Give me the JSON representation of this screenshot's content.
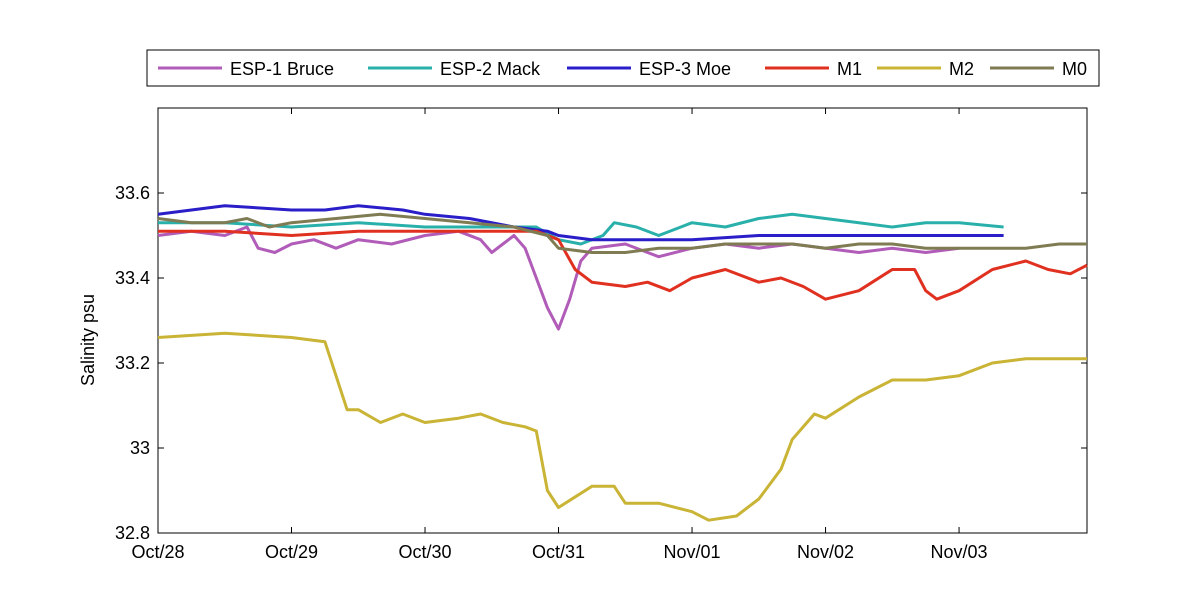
{
  "chart_data": {
    "type": "line",
    "title": "",
    "xlabel": "",
    "ylabel": "Salinity psu",
    "xlim": [
      "2009-10-28T00:00",
      "2009-11-03T23:00"
    ],
    "ylim": [
      32.8,
      33.8
    ],
    "grid": false,
    "legend": "top-horizontal",
    "x_ticks": [
      {
        "t": "2009-10-28T00:00",
        "label": "Oct/28"
      },
      {
        "t": "2009-10-29T00:00",
        "label": "Oct/29"
      },
      {
        "t": "2009-10-30T00:00",
        "label": "Oct/30"
      },
      {
        "t": "2009-10-31T00:00",
        "label": "Oct/31"
      },
      {
        "t": "2009-11-01T00:00",
        "label": "Nov/01"
      },
      {
        "t": "2009-11-02T00:00",
        "label": "Nov/02"
      },
      {
        "t": "2009-11-03T00:00",
        "label": "Nov/03"
      }
    ],
    "y_ticks": [
      {
        "v": 32.8,
        "label": "32.8"
      },
      {
        "v": 33.0,
        "label": "33"
      },
      {
        "v": 33.2,
        "label": "33.2"
      },
      {
        "v": 33.4,
        "label": "33.4"
      },
      {
        "v": 33.6,
        "label": "33.6"
      }
    ],
    "series": [
      {
        "name": "ESP-1 Bruce",
        "color": "#b05cb8",
        "points": [
          [
            "2009-10-28T00:00",
            33.5
          ],
          [
            "2009-10-28T06:00",
            33.51
          ],
          [
            "2009-10-28T12:00",
            33.5
          ],
          [
            "2009-10-28T16:00",
            33.52
          ],
          [
            "2009-10-28T18:00",
            33.47
          ],
          [
            "2009-10-28T21:00",
            33.46
          ],
          [
            "2009-10-29T00:00",
            33.48
          ],
          [
            "2009-10-29T04:00",
            33.49
          ],
          [
            "2009-10-29T08:00",
            33.47
          ],
          [
            "2009-10-29T12:00",
            33.49
          ],
          [
            "2009-10-29T18:00",
            33.48
          ],
          [
            "2009-10-30T00:00",
            33.5
          ],
          [
            "2009-10-30T06:00",
            33.51
          ],
          [
            "2009-10-30T10:00",
            33.49
          ],
          [
            "2009-10-30T12:00",
            33.46
          ],
          [
            "2009-10-30T14:00",
            33.48
          ],
          [
            "2009-10-30T16:00",
            33.5
          ],
          [
            "2009-10-30T18:00",
            33.47
          ],
          [
            "2009-10-30T20:00",
            33.4
          ],
          [
            "2009-10-30T22:00",
            33.33
          ],
          [
            "2009-10-31T00:00",
            33.28
          ],
          [
            "2009-10-31T02:00",
            33.35
          ],
          [
            "2009-10-31T04:00",
            33.44
          ],
          [
            "2009-10-31T06:00",
            33.47
          ],
          [
            "2009-10-31T12:00",
            33.48
          ],
          [
            "2009-10-31T18:00",
            33.45
          ],
          [
            "2009-11-01T00:00",
            33.47
          ],
          [
            "2009-11-01T06:00",
            33.48
          ],
          [
            "2009-11-01T12:00",
            33.47
          ],
          [
            "2009-11-01T18:00",
            33.48
          ],
          [
            "2009-11-02T00:00",
            33.47
          ],
          [
            "2009-11-02T06:00",
            33.46
          ],
          [
            "2009-11-02T12:00",
            33.47
          ],
          [
            "2009-11-02T18:00",
            33.46
          ],
          [
            "2009-11-03T00:00",
            33.47
          ]
        ]
      },
      {
        "name": "ESP-2 Mack",
        "color": "#2ab0aa",
        "points": [
          [
            "2009-10-28T00:00",
            33.53
          ],
          [
            "2009-10-28T12:00",
            33.53
          ],
          [
            "2009-10-29T00:00",
            33.52
          ],
          [
            "2009-10-29T12:00",
            33.53
          ],
          [
            "2009-10-30T00:00",
            33.52
          ],
          [
            "2009-10-30T12:00",
            33.52
          ],
          [
            "2009-10-30T20:00",
            33.52
          ],
          [
            "2009-10-31T00:00",
            33.49
          ],
          [
            "2009-10-31T04:00",
            33.48
          ],
          [
            "2009-10-31T08:00",
            33.5
          ],
          [
            "2009-10-31T10:00",
            33.53
          ],
          [
            "2009-10-31T14:00",
            33.52
          ],
          [
            "2009-10-31T18:00",
            33.5
          ],
          [
            "2009-10-31T22:00",
            33.52
          ],
          [
            "2009-11-01T00:00",
            33.53
          ],
          [
            "2009-11-01T06:00",
            33.52
          ],
          [
            "2009-11-01T12:00",
            33.54
          ],
          [
            "2009-11-01T18:00",
            33.55
          ],
          [
            "2009-11-02T00:00",
            33.54
          ],
          [
            "2009-11-02T06:00",
            33.53
          ],
          [
            "2009-11-02T12:00",
            33.52
          ],
          [
            "2009-11-02T18:00",
            33.53
          ],
          [
            "2009-11-03T00:00",
            33.53
          ],
          [
            "2009-11-03T08:00",
            33.52
          ]
        ]
      },
      {
        "name": "ESP-3 Moe",
        "color": "#2a1ec8",
        "points": [
          [
            "2009-10-28T00:00",
            33.55
          ],
          [
            "2009-10-28T06:00",
            33.56
          ],
          [
            "2009-10-28T12:00",
            33.57
          ],
          [
            "2009-10-29T00:00",
            33.56
          ],
          [
            "2009-10-29T06:00",
            33.56
          ],
          [
            "2009-10-29T12:00",
            33.57
          ],
          [
            "2009-10-29T20:00",
            33.56
          ],
          [
            "2009-10-30T00:00",
            33.55
          ],
          [
            "2009-10-30T08:00",
            33.54
          ],
          [
            "2009-10-30T16:00",
            33.52
          ],
          [
            "2009-10-30T22:00",
            33.51
          ],
          [
            "2009-10-31T00:00",
            33.5
          ],
          [
            "2009-10-31T06:00",
            33.49
          ],
          [
            "2009-10-31T12:00",
            33.49
          ],
          [
            "2009-10-31T18:00",
            33.49
          ],
          [
            "2009-11-01T00:00",
            33.49
          ],
          [
            "2009-11-01T12:00",
            33.5
          ],
          [
            "2009-11-02T00:00",
            33.5
          ],
          [
            "2009-11-02T12:00",
            33.5
          ],
          [
            "2009-11-03T00:00",
            33.5
          ],
          [
            "2009-11-03T08:00",
            33.5
          ]
        ]
      },
      {
        "name": "M1",
        "color": "#e03020",
        "points": [
          [
            "2009-10-28T00:00",
            33.51
          ],
          [
            "2009-10-28T12:00",
            33.51
          ],
          [
            "2009-10-29T00:00",
            33.5
          ],
          [
            "2009-10-29T12:00",
            33.51
          ],
          [
            "2009-10-30T00:00",
            33.51
          ],
          [
            "2009-10-30T12:00",
            33.51
          ],
          [
            "2009-10-30T20:00",
            33.51
          ],
          [
            "2009-10-31T00:00",
            33.49
          ],
          [
            "2009-10-31T03:00",
            33.42
          ],
          [
            "2009-10-31T06:00",
            33.39
          ],
          [
            "2009-10-31T12:00",
            33.38
          ],
          [
            "2009-10-31T16:00",
            33.39
          ],
          [
            "2009-10-31T20:00",
            33.37
          ],
          [
            "2009-11-01T00:00",
            33.4
          ],
          [
            "2009-11-01T06:00",
            33.42
          ],
          [
            "2009-11-01T12:00",
            33.39
          ],
          [
            "2009-11-01T16:00",
            33.4
          ],
          [
            "2009-11-01T20:00",
            33.38
          ],
          [
            "2009-11-02T00:00",
            33.35
          ],
          [
            "2009-11-02T06:00",
            33.37
          ],
          [
            "2009-11-02T12:00",
            33.42
          ],
          [
            "2009-11-02T16:00",
            33.42
          ],
          [
            "2009-11-02T18:00",
            33.37
          ],
          [
            "2009-11-02T20:00",
            33.35
          ],
          [
            "2009-11-03T00:00",
            33.37
          ],
          [
            "2009-11-03T06:00",
            33.42
          ],
          [
            "2009-11-03T12:00",
            33.44
          ],
          [
            "2009-11-03T16:00",
            33.42
          ],
          [
            "2009-11-03T20:00",
            33.41
          ],
          [
            "2009-11-03T23:00",
            33.43
          ]
        ]
      },
      {
        "name": "M2",
        "color": "#c9b436",
        "points": [
          [
            "2009-10-28T00:00",
            33.26
          ],
          [
            "2009-10-28T12:00",
            33.27
          ],
          [
            "2009-10-29T00:00",
            33.26
          ],
          [
            "2009-10-29T06:00",
            33.25
          ],
          [
            "2009-10-29T08:00",
            33.17
          ],
          [
            "2009-10-29T10:00",
            33.09
          ],
          [
            "2009-10-29T12:00",
            33.09
          ],
          [
            "2009-10-29T16:00",
            33.06
          ],
          [
            "2009-10-29T20:00",
            33.08
          ],
          [
            "2009-10-30T00:00",
            33.06
          ],
          [
            "2009-10-30T06:00",
            33.07
          ],
          [
            "2009-10-30T10:00",
            33.08
          ],
          [
            "2009-10-30T14:00",
            33.06
          ],
          [
            "2009-10-30T18:00",
            33.05
          ],
          [
            "2009-10-30T20:00",
            33.04
          ],
          [
            "2009-10-30T22:00",
            32.9
          ],
          [
            "2009-10-31T00:00",
            32.86
          ],
          [
            "2009-10-31T06:00",
            32.91
          ],
          [
            "2009-10-31T10:00",
            32.91
          ],
          [
            "2009-10-31T12:00",
            32.87
          ],
          [
            "2009-10-31T18:00",
            32.87
          ],
          [
            "2009-11-01T00:00",
            32.85
          ],
          [
            "2009-11-01T03:00",
            32.83
          ],
          [
            "2009-11-01T08:00",
            32.84
          ],
          [
            "2009-11-01T12:00",
            32.88
          ],
          [
            "2009-11-01T16:00",
            32.95
          ],
          [
            "2009-11-01T18:00",
            33.02
          ],
          [
            "2009-11-01T22:00",
            33.08
          ],
          [
            "2009-11-02T00:00",
            33.07
          ],
          [
            "2009-11-02T06:00",
            33.12
          ],
          [
            "2009-11-02T12:00",
            33.16
          ],
          [
            "2009-11-02T18:00",
            33.16
          ],
          [
            "2009-11-03T00:00",
            33.17
          ],
          [
            "2009-11-03T06:00",
            33.2
          ],
          [
            "2009-11-03T12:00",
            33.21
          ],
          [
            "2009-11-03T18:00",
            33.21
          ],
          [
            "2009-11-03T23:00",
            33.21
          ]
        ]
      },
      {
        "name": "M0",
        "color": "#7f7b52",
        "points": [
          [
            "2009-10-28T00:00",
            33.54
          ],
          [
            "2009-10-28T06:00",
            33.53
          ],
          [
            "2009-10-28T12:00",
            33.53
          ],
          [
            "2009-10-28T16:00",
            33.54
          ],
          [
            "2009-10-28T20:00",
            33.52
          ],
          [
            "2009-10-29T00:00",
            33.53
          ],
          [
            "2009-10-29T08:00",
            33.54
          ],
          [
            "2009-10-29T16:00",
            33.55
          ],
          [
            "2009-10-30T00:00",
            33.54
          ],
          [
            "2009-10-30T08:00",
            33.53
          ],
          [
            "2009-10-30T16:00",
            33.52
          ],
          [
            "2009-10-30T22:00",
            33.5
          ],
          [
            "2009-10-31T00:00",
            33.47
          ],
          [
            "2009-10-31T06:00",
            33.46
          ],
          [
            "2009-10-31T12:00",
            33.46
          ],
          [
            "2009-10-31T18:00",
            33.47
          ],
          [
            "2009-11-01T00:00",
            33.47
          ],
          [
            "2009-11-01T06:00",
            33.48
          ],
          [
            "2009-11-01T12:00",
            33.48
          ],
          [
            "2009-11-01T18:00",
            33.48
          ],
          [
            "2009-11-02T00:00",
            33.47
          ],
          [
            "2009-11-02T06:00",
            33.48
          ],
          [
            "2009-11-02T12:00",
            33.48
          ],
          [
            "2009-11-02T18:00",
            33.47
          ],
          [
            "2009-11-03T00:00",
            33.47
          ],
          [
            "2009-11-03T12:00",
            33.47
          ],
          [
            "2009-11-03T18:00",
            33.48
          ],
          [
            "2009-11-03T23:00",
            33.48
          ]
        ]
      }
    ]
  }
}
